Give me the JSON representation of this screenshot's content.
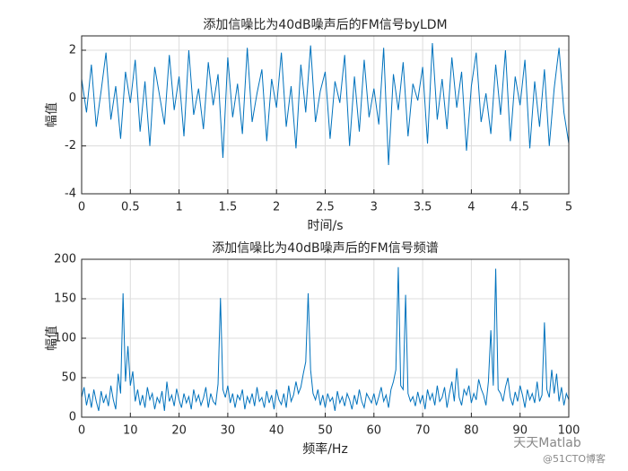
{
  "chart_data": [
    {
      "type": "line",
      "title": "添加信噪比为40dB噪声后的FM信号byLDM",
      "xlabel": "时间/s",
      "ylabel": "幅值",
      "color": "#0072bd",
      "grid": true,
      "xlim": [
        0,
        5
      ],
      "xticks": [
        0,
        0.5,
        1,
        1.5,
        2,
        2.5,
        3,
        3.5,
        4,
        4.5,
        5
      ],
      "ylim": [
        -4,
        2.6
      ],
      "yticks": [
        -4,
        -2,
        0,
        2
      ],
      "x": [
        0,
        0.05,
        0.1,
        0.15,
        0.2,
        0.25,
        0.3,
        0.35,
        0.4,
        0.45,
        0.5,
        0.55,
        0.6,
        0.65,
        0.7,
        0.75,
        0.8,
        0.85,
        0.9,
        0.95,
        1,
        1.05,
        1.1,
        1.15,
        1.2,
        1.25,
        1.3,
        1.35,
        1.4,
        1.45,
        1.5,
        1.55,
        1.6,
        1.65,
        1.7,
        1.75,
        1.8,
        1.85,
        1.9,
        1.95,
        2,
        2.05,
        2.1,
        2.15,
        2.2,
        2.25,
        2.3,
        2.35,
        2.4,
        2.45,
        2.5,
        2.55,
        2.6,
        2.65,
        2.7,
        2.75,
        2.8,
        2.85,
        2.9,
        2.95,
        3,
        3.05,
        3.1,
        3.15,
        3.2,
        3.25,
        3.3,
        3.35,
        3.4,
        3.45,
        3.5,
        3.55,
        3.6,
        3.65,
        3.7,
        3.75,
        3.8,
        3.85,
        3.9,
        3.95,
        4,
        4.05,
        4.1,
        4.15,
        4.2,
        4.25,
        4.3,
        4.35,
        4.4,
        4.45,
        4.5,
        4.55,
        4.6,
        4.65,
        4.7,
        4.75,
        4.8,
        4.85,
        4.9,
        4.95,
        5
      ],
      "values": [
        0.8,
        -0.6,
        1.4,
        -1.2,
        0.3,
        1.9,
        -0.9,
        0.5,
        -1.7,
        1.1,
        -0.2,
        1.6,
        -1.4,
        0.7,
        -2.0,
        1.3,
        0.1,
        -1.1,
        1.8,
        -0.5,
        0.9,
        -1.6,
        2.0,
        -0.7,
        0.4,
        -1.3,
        1.5,
        -0.3,
        1.0,
        -2.5,
        1.7,
        -0.8,
        0.6,
        -1.5,
        2.1,
        -1.0,
        0.2,
        1.2,
        -1.8,
        0.8,
        -0.4,
        1.9,
        -1.2,
        0.5,
        -2.1,
        1.4,
        -0.6,
        2.2,
        -1.0,
        0.3,
        1.1,
        -1.7,
        0.7,
        -0.2,
        1.8,
        -2.0,
        0.9,
        -1.4,
        1.6,
        -0.8,
        0.4,
        -1.1,
        2.1,
        -2.8,
        1.0,
        -0.5,
        1.5,
        -1.6,
        0.6,
        -0.1,
        1.3,
        -1.9,
        2.3,
        -0.9,
        0.8,
        -1.3,
        1.7,
        -0.4,
        1.1,
        -2.2,
        0.5,
        1.9,
        -1.0,
        0.2,
        -1.5,
        1.4,
        -0.7,
        2.0,
        -1.8,
        0.9,
        -0.3,
        1.6,
        -2.1,
        0.7,
        -1.2,
        1.2,
        -2.0,
        0.4,
        2.1,
        -0.6,
        -1.9
      ]
    },
    {
      "type": "line",
      "title": "添加信噪比为40dB噪声后的FM信号频谱",
      "xlabel": "频率/Hz",
      "ylabel": "幅值",
      "color": "#0072bd",
      "grid": true,
      "xlim": [
        0,
        100
      ],
      "xticks": [
        0,
        10,
        20,
        30,
        40,
        50,
        60,
        70,
        80,
        90,
        100
      ],
      "ylim": [
        0,
        200
      ],
      "yticks": [
        0,
        50,
        100,
        150,
        200
      ],
      "x": [
        0,
        0.5,
        1,
        1.5,
        2,
        2.5,
        3,
        3.5,
        4,
        4.5,
        5,
        5.5,
        6,
        6.5,
        7,
        7.5,
        8,
        8.5,
        9,
        9.5,
        10,
        10.5,
        11,
        11.5,
        12,
        12.5,
        13,
        13.5,
        14,
        14.5,
        15,
        15.5,
        16,
        16.5,
        17,
        17.5,
        18,
        18.5,
        19,
        19.5,
        20,
        20.5,
        21,
        21.5,
        22,
        22.5,
        23,
        23.5,
        24,
        24.5,
        25,
        25.5,
        26,
        26.5,
        27,
        27.5,
        28,
        28.5,
        29,
        29.5,
        30,
        30.5,
        31,
        31.5,
        32,
        32.5,
        33,
        33.5,
        34,
        34.5,
        35,
        35.5,
        36,
        36.5,
        37,
        37.5,
        38,
        38.5,
        39,
        39.5,
        40,
        40.5,
        41,
        41.5,
        42,
        42.5,
        43,
        43.5,
        44,
        44.5,
        45,
        45.5,
        46,
        46.5,
        47,
        47.5,
        48,
        48.5,
        49,
        49.5,
        50,
        50.5,
        51,
        51.5,
        52,
        52.5,
        53,
        53.5,
        54,
        54.5,
        55,
        55.5,
        56,
        56.5,
        57,
        57.5,
        58,
        58.5,
        59,
        59.5,
        60,
        60.5,
        61,
        61.5,
        62,
        62.5,
        63,
        63.5,
        64,
        64.5,
        65,
        65.5,
        66,
        66.5,
        67,
        67.5,
        68,
        68.5,
        69,
        69.5,
        70,
        70.5,
        71,
        71.5,
        72,
        72.5,
        73,
        73.5,
        74,
        74.5,
        75,
        75.5,
        76,
        76.5,
        77,
        77.5,
        78,
        78.5,
        79,
        79.5,
        80,
        80.5,
        81,
        81.5,
        82,
        82.5,
        83,
        83.5,
        84,
        84.5,
        85,
        85.5,
        86,
        86.5,
        87,
        87.5,
        88,
        88.5,
        89,
        89.5,
        90,
        90.5,
        91,
        91.5,
        92,
        92.5,
        93,
        93.5,
        94,
        94.5,
        95,
        95.5,
        96,
        96.5,
        97,
        97.5,
        98,
        98.5,
        99,
        99.5,
        100
      ],
      "values": [
        25,
        38,
        15,
        30,
        12,
        35,
        20,
        8,
        33,
        18,
        28,
        14,
        40,
        22,
        10,
        55,
        30,
        157,
        45,
        90,
        40,
        58,
        20,
        35,
        15,
        28,
        12,
        38,
        22,
        30,
        10,
        25,
        18,
        33,
        8,
        45,
        20,
        28,
        14,
        36,
        22,
        12,
        30,
        18,
        26,
        10,
        35,
        20,
        28,
        15,
        24,
        38,
        12,
        30,
        20,
        16,
        42,
        151,
        35,
        25,
        40,
        18,
        30,
        12,
        28,
        22,
        35,
        10,
        26,
        18,
        30,
        14,
        38,
        20,
        25,
        12,
        33,
        18,
        28,
        10,
        35,
        22,
        16,
        30,
        12,
        40,
        20,
        28,
        45,
        30,
        38,
        55,
        70,
        157,
        60,
        30,
        22,
        35,
        15,
        28,
        12,
        30,
        20,
        25,
        8,
        33,
        18,
        26,
        14,
        30,
        22,
        10,
        28,
        16,
        35,
        20,
        12,
        30,
        24,
        18,
        30,
        15,
        26,
        38,
        20,
        28,
        12,
        35,
        45,
        60,
        190,
        40,
        35,
        155,
        30,
        20,
        26,
        14,
        32,
        18,
        28,
        10,
        35,
        22,
        30,
        15,
        40,
        20,
        25,
        38,
        12,
        30,
        45,
        20,
        62,
        25,
        15,
        35,
        28,
        40,
        18,
        30,
        22,
        48,
        36,
        28,
        15,
        45,
        110,
        40,
        188,
        35,
        30,
        20,
        38,
        50,
        25,
        15,
        32,
        20,
        40,
        28,
        12,
        35,
        22,
        30,
        18,
        45,
        20,
        28,
        120,
        35,
        25,
        60,
        30,
        55,
        20,
        38,
        15,
        30,
        22
      ]
    }
  ],
  "watermark": {
    "line1": "天天Matlab",
    "line2": "@51CTO博客"
  }
}
